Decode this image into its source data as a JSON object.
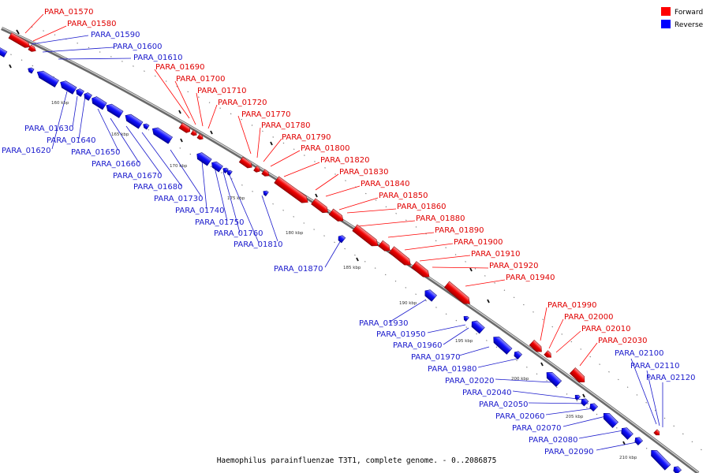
{
  "caption": "Haemophilus parainfluenzae T3T1, complete genome. - 0..2086875",
  "legend": {
    "forward": "Forward",
    "reverse": "Reverse",
    "forward_color": "#ff0000",
    "reverse_color": "#0000ff"
  },
  "ticks": [
    "160 kbp",
    "165 kbp",
    "170 kbp",
    "175 kbp",
    "180 kbp",
    "185 kbp",
    "190 kbp",
    "195 kbp",
    "200 kbp",
    "205 kbp",
    "210 kbp"
  ],
  "genes": {
    "forward": [
      "PARA_01570",
      "PARA_01580",
      "PARA_01690",
      "PARA_01700",
      "PARA_01710",
      "PARA_01720",
      "PARA_01770",
      "PARA_01780",
      "PARA_01790",
      "PARA_01800",
      "PARA_01820",
      "PARA_01830",
      "PARA_01840",
      "PARA_01850",
      "PARA_01860",
      "PARA_01880",
      "PARA_01890",
      "PARA_01900",
      "PARA_01910",
      "PARA_01920",
      "PARA_01940",
      "PARA_01990",
      "PARA_02000",
      "PARA_02010",
      "PARA_02030"
    ],
    "reverse": [
      "PARA_01590",
      "PARA_01600",
      "PARA_01610",
      "PARA_01630",
      "PARA_01640",
      "PARA_01620",
      "PARA_01650",
      "PARA_01660",
      "PARA_01670",
      "PARA_01680",
      "PARA_01730",
      "PARA_01740",
      "PARA_01750",
      "PARA_01760",
      "PARA_01810",
      "PARA_01870",
      "PARA_01930",
      "PARA_01950",
      "PARA_01960",
      "PARA_01970",
      "PARA_01980",
      "PARA_02020",
      "PARA_02040",
      "PARA_02050",
      "PARA_02060",
      "PARA_02070",
      "PARA_02080",
      "PARA_02090",
      "PARA_02100",
      "PARA_02110",
      "PARA_02120"
    ]
  }
}
